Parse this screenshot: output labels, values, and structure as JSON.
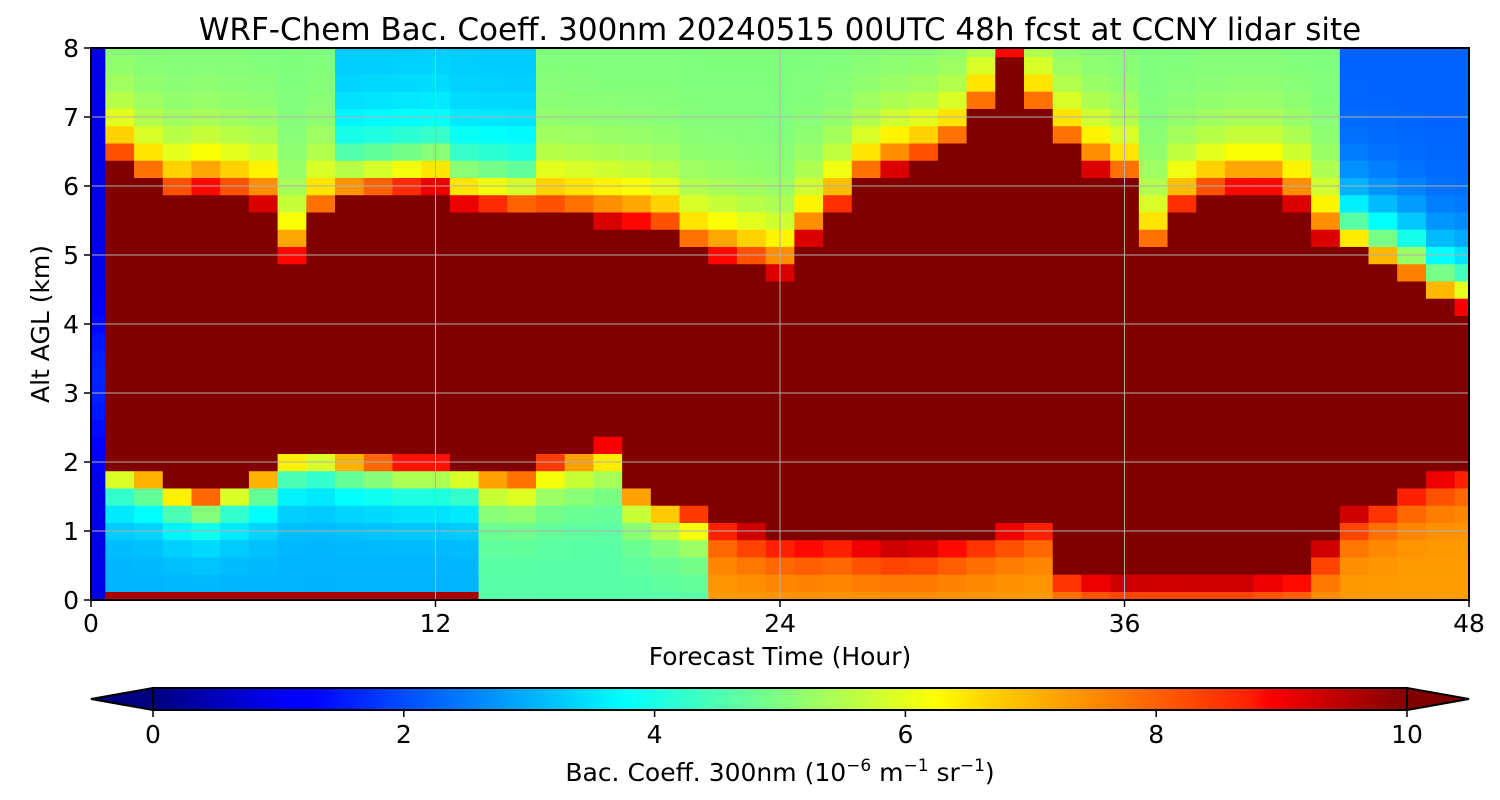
{
  "chart_data": {
    "type": "heatmap",
    "title": "WRF-Chem Bac. Coeff. 300nm  20240515 00UTC 48h fcst at CCNY lidar site",
    "xlabel": "Forecast Time (Hour)",
    "ylabel": "Alt AGL (km)",
    "xlim": [
      0,
      48
    ],
    "ylim": [
      0,
      8
    ],
    "xticks": [
      0,
      12,
      24,
      36,
      48
    ],
    "yticks": [
      0,
      1,
      2,
      3,
      4,
      5,
      6,
      7,
      8
    ],
    "grid": true,
    "colormap": "jet",
    "colorbar": {
      "orientation": "horizontal",
      "placement": "bottom",
      "extend": "both",
      "range": [
        0,
        10
      ],
      "ticks": [
        0,
        2,
        4,
        6,
        8,
        10
      ],
      "label_prefix": "Bac. Coeff. 300nm  (10",
      "label_exp1": "−6",
      "label_mid": " m",
      "label_exp2": "−1",
      "label_mid2": " sr",
      "label_exp3": "−1",
      "label_suffix": ")"
    },
    "units": "10^-6 m^-1 sr^-1",
    "hours": [
      0,
      1,
      2,
      3,
      4,
      5,
      6,
      7,
      8,
      9,
      10,
      11,
      12,
      13,
      14,
      15,
      16,
      17,
      18,
      19,
      20,
      21,
      22,
      23,
      24,
      25,
      26,
      27,
      28,
      29,
      30,
      31,
      32,
      33,
      34,
      35,
      36,
      37,
      38,
      39,
      40,
      41,
      42,
      43,
      44,
      45,
      46,
      47,
      48
    ],
    "altitudes_km": [
      0,
      0.25,
      0.5,
      0.75,
      1,
      1.25,
      1.5,
      1.75,
      2,
      2.25,
      2.5,
      2.75,
      3,
      3.25,
      3.5,
      3.75,
      4,
      4.25,
      4.5,
      4.75,
      5,
      5.25,
      5.5,
      5.75,
      6,
      6.25,
      6.5,
      6.75,
      7,
      7.25,
      7.5,
      7.75,
      8
    ],
    "features": {
      "layer_top_km": [
        2.0,
        6.3,
        6.0,
        5.8,
        5.9,
        5.8,
        5.7,
        4.9,
        5.5,
        5.8,
        5.85,
        5.9,
        5.95,
        5.7,
        5.65,
        5.6,
        5.55,
        5.5,
        5.45,
        5.4,
        5.3,
        5.0,
        4.9,
        4.8,
        4.7,
        5.2,
        5.6,
        6.0,
        6.2,
        6.3,
        6.5,
        7.0,
        7.9,
        7.0,
        6.5,
        6.2,
        6.0,
        5.0,
        5.6,
        5.8,
        5.9,
        5.9,
        5.7,
        5.2,
        5.0,
        4.8,
        4.6,
        4.3,
        4.2
      ],
      "layer_bottom_km": [
        2.0,
        2.0,
        1.9,
        1.7,
        1.6,
        1.75,
        1.9,
        2.2,
        2.25,
        2.15,
        2.1,
        2.05,
        2.05,
        2.0,
        1.95,
        1.9,
        2.1,
        2.2,
        2.3,
        1.7,
        1.5,
        1.35,
        1.2,
        1.05,
        0.95,
        0.9,
        0.95,
        0.85,
        0.8,
        0.82,
        0.9,
        1.0,
        1.1,
        1.2,
        0.5,
        0.35,
        0.3,
        0.3,
        0.3,
        0.3,
        0.3,
        0.35,
        0.4,
        0.8,
        1.3,
        1.5,
        1.7,
        1.85,
        1.95
      ],
      "surface_layer_top_km": 0.2,
      "surface_layer_end_hour": 14
    }
  }
}
